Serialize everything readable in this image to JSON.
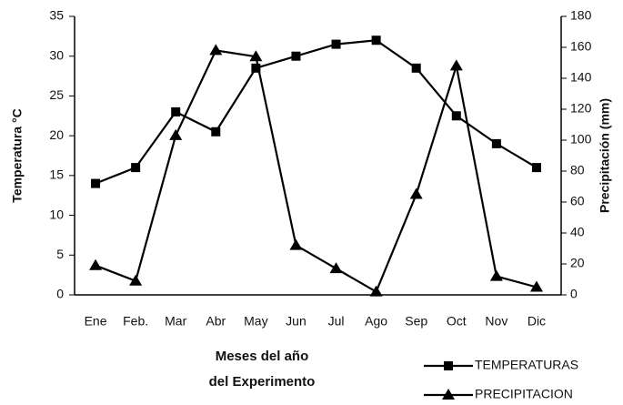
{
  "chart_data": {
    "type": "line",
    "categories": [
      "Ene",
      "Feb.",
      "Mar",
      "Abr",
      "May",
      "Jun",
      "Jul",
      "Ago",
      "Sep",
      "Oct",
      "Nov",
      "Dic"
    ],
    "series": [
      {
        "name": "TEMPERATURAS",
        "color": "#000000",
        "marker": "square",
        "axis": "y",
        "values": [
          14,
          16,
          23,
          20.5,
          28.5,
          30,
          31.5,
          32,
          28.5,
          22.5,
          19,
          16
        ]
      },
      {
        "name": "PRECIPITACION",
        "color": "#000000",
        "marker": "triangle",
        "axis": "y2",
        "values": [
          19,
          9,
          103,
          158,
          154,
          32,
          17,
          2,
          65,
          148,
          12,
          5
        ]
      }
    ],
    "ylim": [
      0,
      35
    ],
    "yticks": [
      0,
      5,
      10,
      15,
      20,
      25,
      30,
      35
    ],
    "y2lim": [
      0,
      180
    ],
    "y2ticks": [
      0,
      20,
      40,
      60,
      80,
      100,
      120,
      140,
      160,
      180
    ],
    "y_label": "Temperatura °C",
    "y2_label": "Precipitación (mm)",
    "x_label": [
      "Meses del año",
      "del Experimento"
    ],
    "grid": false,
    "legend": "lower right"
  }
}
